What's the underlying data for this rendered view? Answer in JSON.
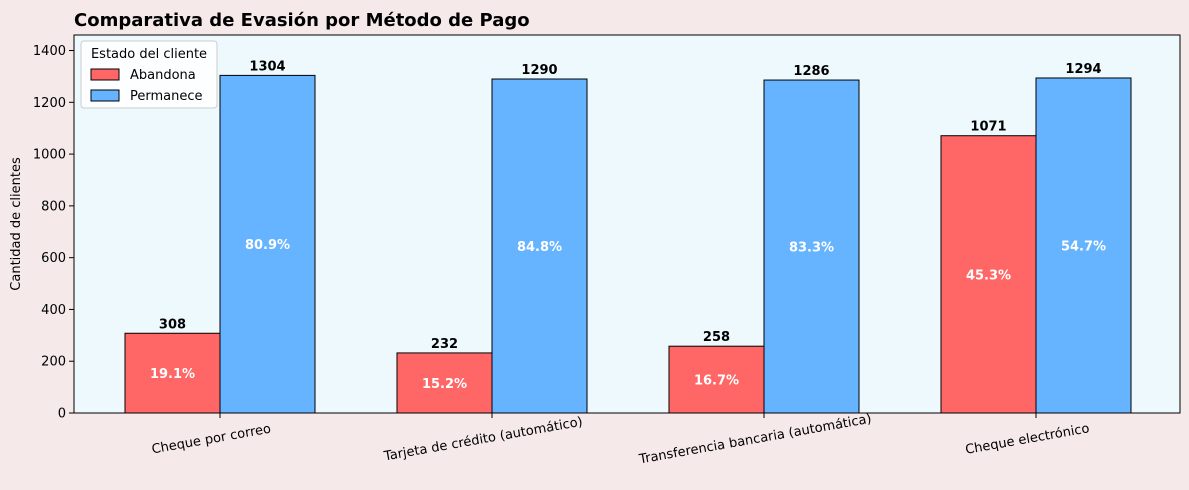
{
  "chart_data": {
    "type": "bar",
    "title": "Comparativa de Evasión por Método de Pago",
    "xlabel": "",
    "ylabel": "Cantidad de clientes",
    "ylim": [
      0,
      1460
    ],
    "yticks": [
      0,
      200,
      400,
      600,
      800,
      1000,
      1200,
      1400
    ],
    "grid": false,
    "legend": {
      "title": "Estado del cliente",
      "placement": "top-left"
    },
    "categories": [
      "Cheque por correo",
      "Tarjeta de crédito (automático)",
      "Transferencia bancaria (automática)",
      "Cheque electrónico"
    ],
    "series": [
      {
        "name": "Abandona",
        "color": "#ff6666",
        "values": [
          308,
          232,
          258,
          1071
        ],
        "value_labels": [
          "308",
          "232",
          "258",
          "1071"
        ],
        "pct_labels": [
          "19.1%",
          "15.2%",
          "16.7%",
          "45.3%"
        ]
      },
      {
        "name": "Permanece",
        "color": "#66b3ff",
        "values": [
          1304,
          1290,
          1286,
          1294
        ],
        "value_labels": [
          "1304",
          "1290",
          "1286",
          "1294"
        ],
        "pct_labels": [
          "80.9%",
          "84.8%",
          "83.3%",
          "54.7%"
        ]
      }
    ],
    "plot_background": "#eef9fe",
    "page_background": "#f5e9ea"
  }
}
